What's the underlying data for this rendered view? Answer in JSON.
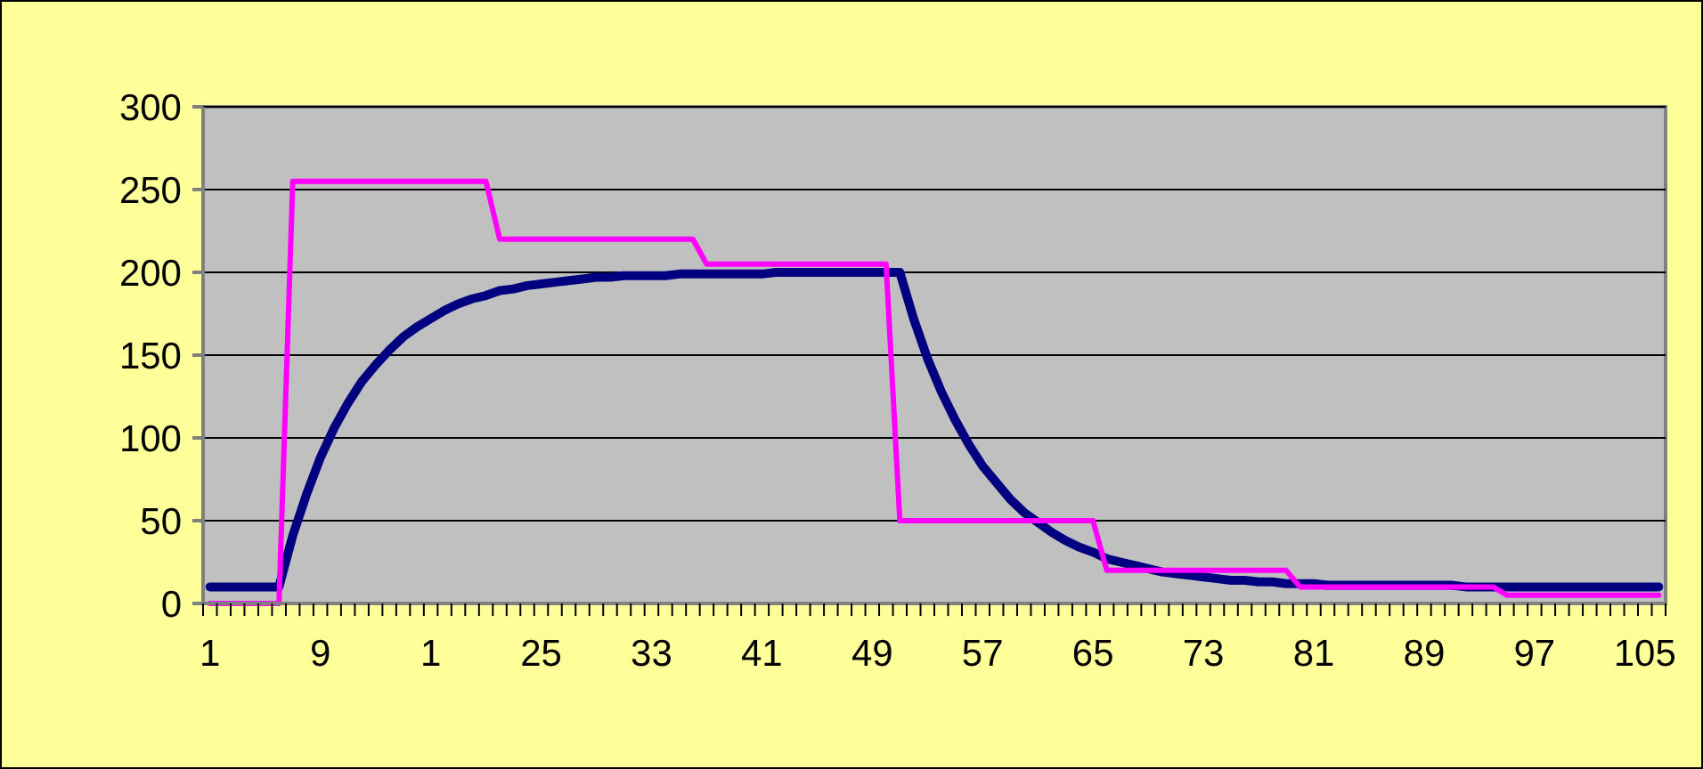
{
  "chart_data": {
    "type": "line",
    "categories": [
      "1",
      null,
      null,
      null,
      null,
      null,
      null,
      null,
      "9",
      null,
      null,
      null,
      null,
      null,
      null,
      null,
      "1",
      null,
      null,
      null,
      null,
      null,
      null,
      null,
      "25",
      null,
      null,
      null,
      null,
      null,
      null,
      null,
      "33",
      null,
      null,
      null,
      null,
      null,
      null,
      null,
      "41",
      null,
      null,
      null,
      null,
      null,
      null,
      null,
      "49",
      null,
      null,
      null,
      null,
      null,
      null,
      null,
      "57",
      null,
      null,
      null,
      null,
      null,
      null,
      null,
      "65",
      null,
      null,
      null,
      null,
      null,
      null,
      null,
      "73",
      null,
      null,
      null,
      null,
      null,
      null,
      null,
      "81",
      null,
      null,
      null,
      null,
      null,
      null,
      null,
      "89",
      null,
      null,
      null,
      null,
      null,
      null,
      null,
      "97",
      null,
      null,
      null,
      null,
      null,
      null,
      null,
      "105",
      null
    ],
    "series": [
      {
        "color": "#000080",
        "values": [
          10,
          10,
          10,
          10,
          10,
          10,
          41,
          66,
          88,
          106,
          121,
          134,
          144,
          153,
          161,
          167,
          172,
          177,
          181,
          184,
          186,
          189,
          190,
          192,
          193,
          194,
          195,
          196,
          197,
          197,
          198,
          198,
          198,
          198,
          199,
          199,
          199,
          199,
          199,
          199,
          199,
          200,
          200,
          200,
          200,
          200,
          200,
          200,
          200,
          200,
          200,
          172,
          148,
          128,
          111,
          96,
          83,
          73,
          63,
          55,
          49,
          43,
          38,
          34,
          31,
          27,
          25,
          23,
          21,
          19,
          18,
          17,
          16,
          15,
          14,
          14,
          13,
          13,
          12,
          12,
          12,
          11,
          11,
          11,
          11,
          11,
          11,
          11,
          11,
          11,
          11,
          10,
          10,
          10,
          10,
          10,
          10,
          10,
          10,
          10,
          10,
          10,
          10,
          10,
          10,
          10
        ]
      },
      {
        "color": "#ff00ff",
        "values": [
          0,
          0,
          0,
          0,
          0,
          0,
          255,
          255,
          255,
          255,
          255,
          255,
          255,
          255,
          255,
          255,
          255,
          255,
          255,
          255,
          255,
          220,
          220,
          220,
          220,
          220,
          220,
          220,
          220,
          220,
          220,
          220,
          220,
          220,
          220,
          220,
          205,
          205,
          205,
          205,
          205,
          205,
          205,
          205,
          205,
          205,
          205,
          205,
          205,
          205,
          50,
          50,
          50,
          50,
          50,
          50,
          50,
          50,
          50,
          50,
          50,
          50,
          50,
          50,
          50,
          20,
          20,
          20,
          20,
          20,
          20,
          20,
          20,
          20,
          20,
          20,
          20,
          20,
          20,
          10,
          10,
          10,
          10,
          10,
          10,
          10,
          10,
          10,
          10,
          10,
          10,
          10,
          10,
          10,
          5,
          5,
          5,
          5,
          5,
          5,
          5,
          5,
          5,
          5,
          5,
          5
        ]
      }
    ],
    "ylim": [
      0,
      300
    ],
    "yticks": [
      0,
      50,
      100,
      150,
      200,
      250,
      300
    ],
    "grid": "y"
  }
}
